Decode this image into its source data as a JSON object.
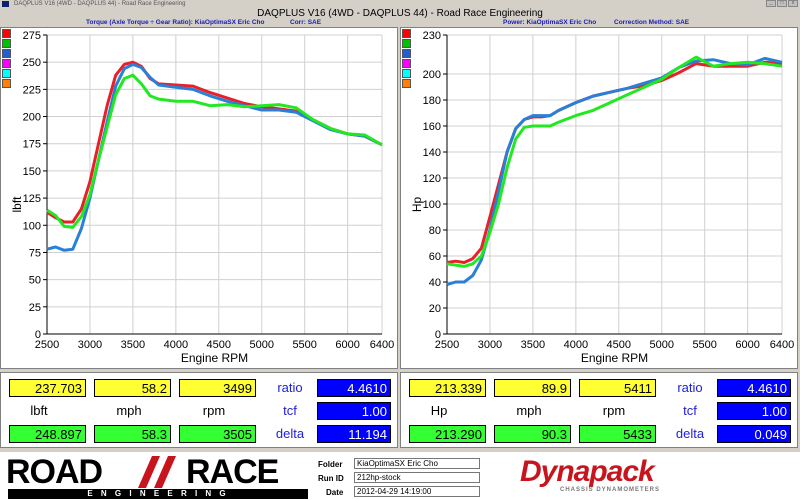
{
  "window": {
    "title": "DAQPLUS V16 (4WD - DAQPLUS 44) - Road Race Engineering",
    "main_header": "DAQPLUS V16 (4WD - DAQPLUS 44) - Road Race Engineering"
  },
  "left_header": {
    "text1": "Torque (Axle Torque ÷ Gear Ratio): KiaOptimaSX Eric Cho",
    "text2": "Corr: SAE"
  },
  "right_header": {
    "text1": "Power: KiaOptimaSX Eric Cho",
    "text2": "Correction Method: SAE"
  },
  "colors": {
    "red": "#e8202a",
    "green": "#22e822",
    "blue": "#2a7fd6",
    "swatches": [
      "#ff0000",
      "#00c000",
      "#2060d0",
      "#ff00ff",
      "#00ffff",
      "#ff8000"
    ]
  },
  "chart_data": [
    {
      "type": "line",
      "title": "",
      "xlabel": "Engine RPM",
      "ylabel": "lbft",
      "xlim": [
        2500,
        6400
      ],
      "ylim": [
        0,
        275
      ],
      "xticks": [
        "2500",
        "3000",
        "3500",
        "4000",
        "4500",
        "5000",
        "5500",
        "6000",
        "6400"
      ],
      "yticks": [
        "0",
        "25",
        "50",
        "75",
        "100",
        "125",
        "150",
        "175",
        "200",
        "225",
        "250",
        "275"
      ],
      "series": [
        {
          "color": "#e8202a",
          "points": [
            [
              2500,
              112
            ],
            [
              2600,
              107
            ],
            [
              2700,
              103
            ],
            [
              2800,
              103
            ],
            [
              2900,
              115
            ],
            [
              3000,
              140
            ],
            [
              3100,
              175
            ],
            [
              3200,
              210
            ],
            [
              3300,
              238
            ],
            [
              3400,
              248
            ],
            [
              3500,
              250
            ],
            [
              3600,
              246
            ],
            [
              3700,
              235
            ],
            [
              3800,
              230
            ],
            [
              4000,
              229
            ],
            [
              4200,
              228
            ],
            [
              4400,
              222
            ],
            [
              4600,
              217
            ],
            [
              4800,
              212
            ],
            [
              5000,
              209
            ],
            [
              5200,
              207
            ],
            [
              5400,
              205
            ],
            [
              5600,
              197
            ],
            [
              5800,
              189
            ],
            [
              6000,
              184
            ],
            [
              6200,
              182
            ],
            [
              6400,
              174
            ]
          ]
        },
        {
          "color": "#2a7fd6",
          "points": [
            [
              2500,
              78
            ],
            [
              2600,
              80
            ],
            [
              2700,
              77
            ],
            [
              2800,
              78
            ],
            [
              2900,
              97
            ],
            [
              3000,
              125
            ],
            [
              3100,
              160
            ],
            [
              3200,
              195
            ],
            [
              3300,
              228
            ],
            [
              3400,
              244
            ],
            [
              3500,
              248
            ],
            [
              3600,
              245
            ],
            [
              3700,
              236
            ],
            [
              3800,
              229
            ],
            [
              4000,
              227
            ],
            [
              4200,
              225
            ],
            [
              4400,
              219
            ],
            [
              4600,
              214
            ],
            [
              4800,
              210
            ],
            [
              5000,
              206
            ],
            [
              5200,
              206
            ],
            [
              5400,
              204
            ],
            [
              5600,
              196
            ],
            [
              5800,
              188
            ],
            [
              6000,
              184
            ],
            [
              6200,
              182
            ],
            [
              6400,
              174
            ]
          ]
        },
        {
          "color": "#22e822",
          "points": [
            [
              2500,
              114
            ],
            [
              2600,
              109
            ],
            [
              2700,
              99
            ],
            [
              2800,
              98
            ],
            [
              2900,
              108
            ],
            [
              3000,
              128
            ],
            [
              3100,
              160
            ],
            [
              3200,
              190
            ],
            [
              3300,
              220
            ],
            [
              3400,
              235
            ],
            [
              3500,
              238
            ],
            [
              3600,
              230
            ],
            [
              3700,
              219
            ],
            [
              3800,
              216
            ],
            [
              4000,
              214
            ],
            [
              4200,
              214
            ],
            [
              4400,
              210
            ],
            [
              4600,
              211
            ],
            [
              4800,
              209
            ],
            [
              5000,
              210
            ],
            [
              5200,
              211
            ],
            [
              5400,
              208
            ],
            [
              5600,
              197
            ],
            [
              5800,
              189
            ],
            [
              6000,
              184
            ],
            [
              6200,
              183
            ],
            [
              6400,
              174
            ]
          ]
        }
      ]
    },
    {
      "type": "line",
      "title": "",
      "xlabel": "Engine RPM",
      "ylabel": "Hp",
      "xlim": [
        2500,
        6400
      ],
      "ylim": [
        0,
        230
      ],
      "xticks": [
        "2500",
        "3000",
        "3500",
        "4000",
        "4500",
        "5000",
        "5500",
        "6000",
        "6400"
      ],
      "yticks": [
        "0",
        "20",
        "40",
        "60",
        "80",
        "100",
        "120",
        "140",
        "160",
        "180",
        "200",
        "230"
      ],
      "series": [
        {
          "color": "#e8202a",
          "points": [
            [
              2500,
              55
            ],
            [
              2600,
              56
            ],
            [
              2700,
              55
            ],
            [
              2800,
              58
            ],
            [
              2900,
              66
            ],
            [
              3000,
              90
            ],
            [
              3100,
              115
            ],
            [
              3200,
              140
            ],
            [
              3300,
              158
            ],
            [
              3400,
              165
            ],
            [
              3500,
              167
            ],
            [
              3600,
              167
            ],
            [
              3700,
              168
            ],
            [
              3800,
              172
            ],
            [
              4000,
              178
            ],
            [
              4200,
              183
            ],
            [
              4400,
              186
            ],
            [
              4600,
              189
            ],
            [
              4800,
              191
            ],
            [
              5000,
              195
            ],
            [
              5200,
              201
            ],
            [
              5400,
              208
            ],
            [
              5600,
              206
            ],
            [
              5800,
              206
            ],
            [
              6000,
              206
            ],
            [
              6200,
              209
            ],
            [
              6400,
              208
            ]
          ]
        },
        {
          "color": "#2a7fd6",
          "points": [
            [
              2500,
              38
            ],
            [
              2600,
              40
            ],
            [
              2700,
              40
            ],
            [
              2800,
              45
            ],
            [
              2900,
              57
            ],
            [
              3000,
              80
            ],
            [
              3100,
              110
            ],
            [
              3200,
              140
            ],
            [
              3300,
              158
            ],
            [
              3400,
              165
            ],
            [
              3500,
              168
            ],
            [
              3600,
              168
            ],
            [
              3700,
              168
            ],
            [
              3800,
              172
            ],
            [
              4000,
              178
            ],
            [
              4200,
              183
            ],
            [
              4400,
              186
            ],
            [
              4600,
              189
            ],
            [
              4800,
              193
            ],
            [
              5000,
              197
            ],
            [
              5200,
              205
            ],
            [
              5400,
              210
            ],
            [
              5600,
              211
            ],
            [
              5800,
              208
            ],
            [
              6000,
              207
            ],
            [
              6200,
              212
            ],
            [
              6400,
              209
            ]
          ]
        },
        {
          "color": "#22e822",
          "points": [
            [
              2500,
              54
            ],
            [
              2600,
              53
            ],
            [
              2700,
              52
            ],
            [
              2800,
              54
            ],
            [
              2900,
              60
            ],
            [
              3000,
              78
            ],
            [
              3100,
              100
            ],
            [
              3200,
              128
            ],
            [
              3300,
              150
            ],
            [
              3400,
              159
            ],
            [
              3500,
              160
            ],
            [
              3600,
              160
            ],
            [
              3700,
              160
            ],
            [
              3800,
              163
            ],
            [
              4000,
              168
            ],
            [
              4200,
              172
            ],
            [
              4400,
              178
            ],
            [
              4600,
              184
            ],
            [
              4800,
              190
            ],
            [
              5000,
              196
            ],
            [
              5200,
              205
            ],
            [
              5400,
              213
            ],
            [
              5600,
              206
            ],
            [
              5800,
              208
            ],
            [
              6000,
              209
            ],
            [
              6200,
              208
            ],
            [
              6400,
              206
            ]
          ]
        }
      ]
    }
  ],
  "left_readout": {
    "row1": [
      "237.703",
      "58.2",
      "3499"
    ],
    "labels": [
      "lbft",
      "mph",
      "rpm"
    ],
    "row3": [
      "248.897",
      "58.3",
      "3505"
    ],
    "side_labels": [
      "ratio",
      "tcf",
      "delta"
    ],
    "side_values": [
      "4.4610",
      "1.00",
      "11.194"
    ]
  },
  "right_readout": {
    "row1": [
      "213.339",
      "89.9",
      "5411"
    ],
    "labels": [
      "Hp",
      "mph",
      "rpm"
    ],
    "row3": [
      "213.290",
      "90.3",
      "5433"
    ],
    "side_labels": [
      "ratio",
      "tcf",
      "delta"
    ],
    "side_values": [
      "4.4610",
      "1.00",
      "0.049"
    ]
  },
  "footer": {
    "logo_road": "ROAD",
    "logo_race": "RACE",
    "logo_sub": "E N G I N E E R I N G",
    "folder_label": "Folder",
    "folder_value": "KiaOptimaSX Eric Cho",
    "runid_label": "Run ID",
    "runid_value": "212hp-stock",
    "date_label": "Date",
    "date_value": "2012-04-29 14:19:00",
    "brand": "Dynapack",
    "brand_sub": "CHASSIS DYNAMOMETERS"
  }
}
